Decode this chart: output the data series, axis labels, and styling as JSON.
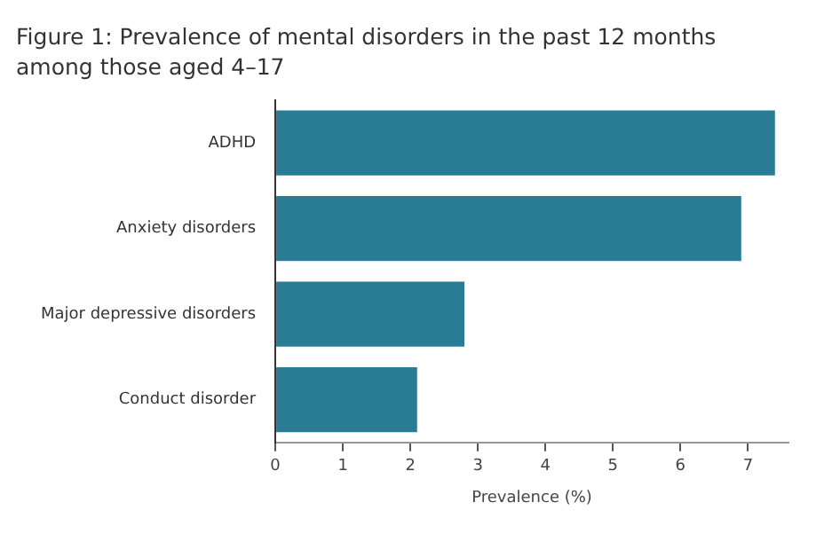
{
  "chart_data": {
    "type": "bar",
    "orientation": "horizontal",
    "title": "Figure 1: Prevalence of mental disorders in the past 12 months among those aged 4–17",
    "xlabel": "Prevalence (%)",
    "categories": [
      "ADHD",
      "Anxiety disorders",
      "Major depressive disorders",
      "Conduct disorder"
    ],
    "values": [
      7.4,
      6.9,
      2.8,
      2.1
    ],
    "color": "#2a7c96",
    "xlim": [
      0,
      7.6
    ],
    "xticks": [
      0,
      1,
      2,
      3,
      4,
      5,
      6,
      7
    ],
    "grid": false,
    "legend": false
  }
}
